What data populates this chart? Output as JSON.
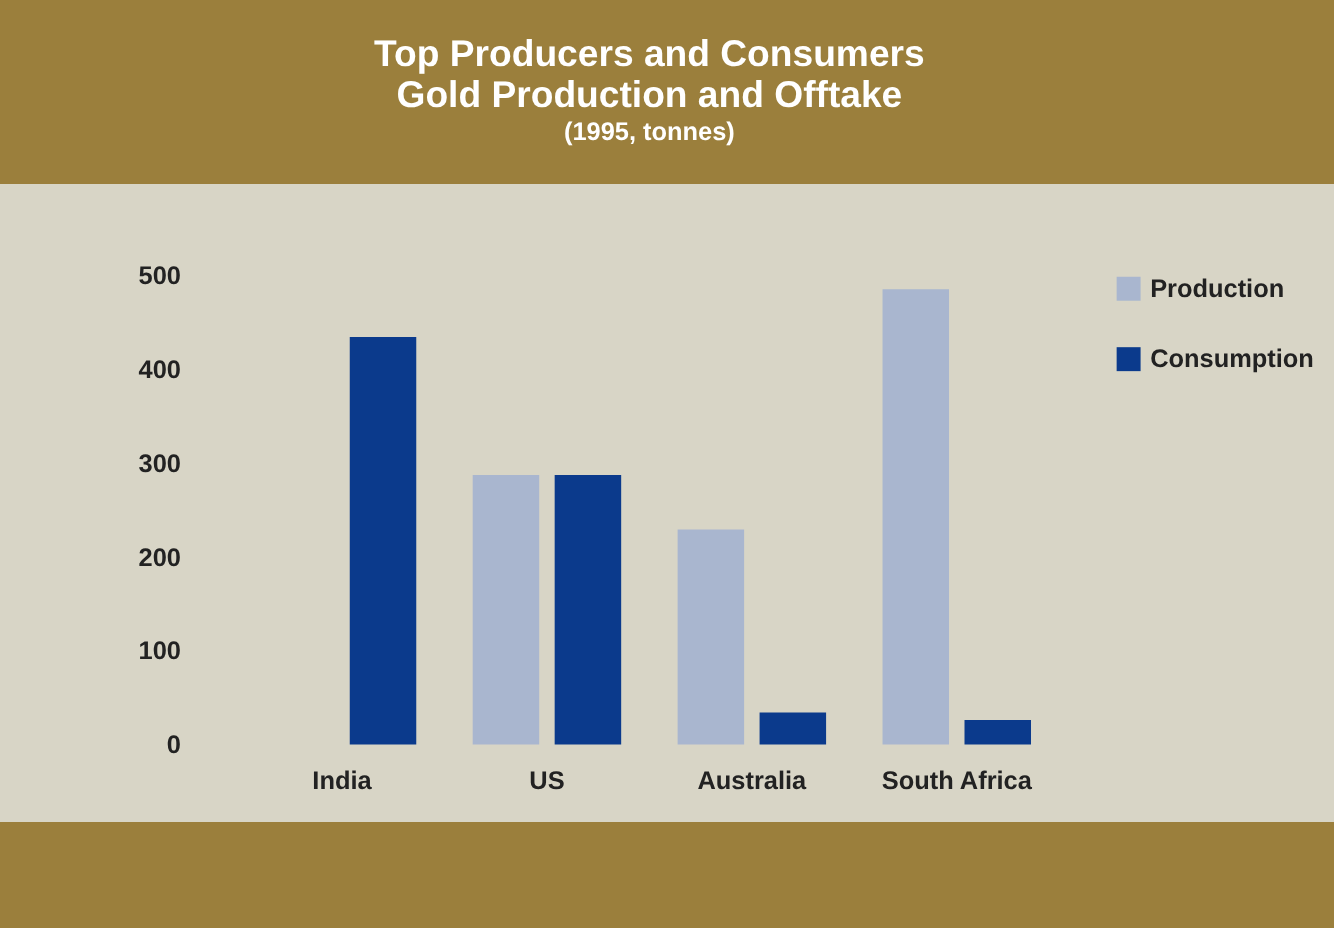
{
  "chart_data": {
    "type": "bar",
    "title": "Top Producers and Consumers\nGold Production and Offtake",
    "subtitle": "(1995, tonnes)",
    "categories": [
      "India",
      "US",
      "Australia",
      "South Africa"
    ],
    "series": [
      {
        "name": "Production",
        "color": "#a9b6cf",
        "values": [
          0,
          287,
          229,
          485
        ]
      },
      {
        "name": "Consumption",
        "color": "#0b3a8c",
        "values": [
          434,
          287,
          34,
          26
        ]
      }
    ],
    "ylim": [
      0,
      500
    ],
    "yticks": [
      0,
      100,
      200,
      300,
      400,
      500
    ],
    "grid": false,
    "legend": "right"
  }
}
